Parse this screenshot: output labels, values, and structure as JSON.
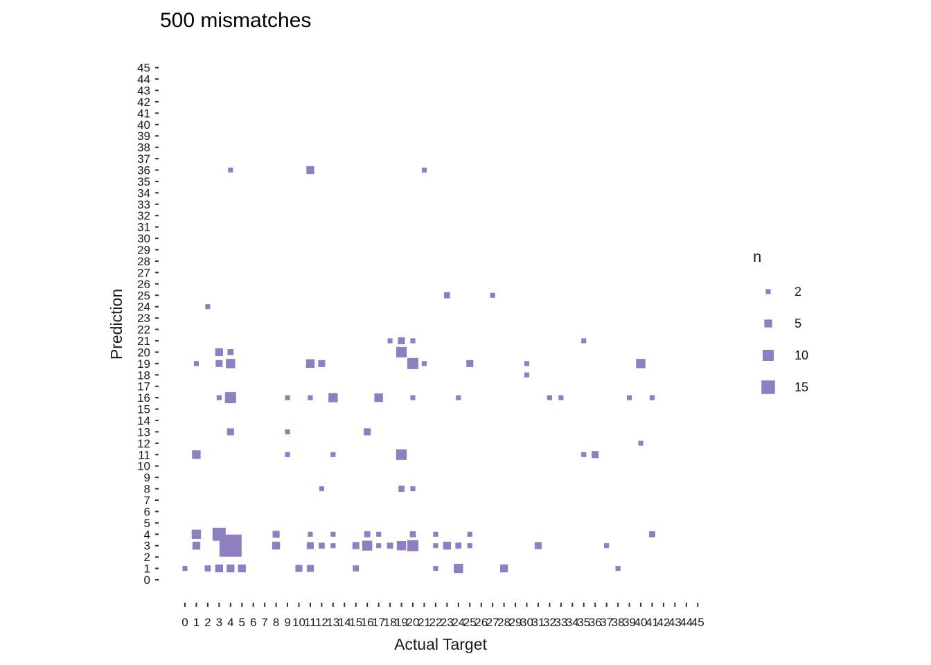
{
  "chart_data": {
    "type": "scatter",
    "title": "500 mismatches",
    "xlabel": "Actual Target",
    "ylabel": "Prediction",
    "xlim": [
      0,
      45
    ],
    "ylim": [
      0,
      45
    ],
    "grid": false,
    "legend_position": "right",
    "legend": {
      "title": "n",
      "entries": [
        {
          "label": "2",
          "value": 2
        },
        {
          "label": "5",
          "value": 5
        },
        {
          "label": "10",
          "value": 10
        },
        {
          "label": "15",
          "value": 15
        }
      ]
    },
    "point_color": "#8e7fc1",
    "points": [
      {
        "x": 0,
        "y": 1,
        "n": 2
      },
      {
        "x": 1,
        "y": 19,
        "n": 2
      },
      {
        "x": 1,
        "y": 11,
        "n": 6
      },
      {
        "x": 1,
        "y": 4,
        "n": 7
      },
      {
        "x": 1,
        "y": 3,
        "n": 5
      },
      {
        "x": 2,
        "y": 24,
        "n": 2
      },
      {
        "x": 2,
        "y": 1,
        "n": 3
      },
      {
        "x": 3,
        "y": 20,
        "n": 5
      },
      {
        "x": 3,
        "y": 19,
        "n": 4
      },
      {
        "x": 3,
        "y": 16,
        "n": 2
      },
      {
        "x": 3,
        "y": 4,
        "n": 14
      },
      {
        "x": 3,
        "y": 1,
        "n": 5
      },
      {
        "x": 4,
        "y": 36,
        "n": 2
      },
      {
        "x": 4,
        "y": 20,
        "n": 3
      },
      {
        "x": 4,
        "y": 19,
        "n": 7
      },
      {
        "x": 4,
        "y": 16,
        "n": 10
      },
      {
        "x": 4,
        "y": 13,
        "n": 4
      },
      {
        "x": 4,
        "y": 3,
        "n": 40
      },
      {
        "x": 4,
        "y": 1,
        "n": 5
      },
      {
        "x": 5,
        "y": 1,
        "n": 5
      },
      {
        "x": 8,
        "y": 4,
        "n": 4
      },
      {
        "x": 8,
        "y": 3,
        "n": 5
      },
      {
        "x": 9,
        "y": 16,
        "n": 2
      },
      {
        "x": 9,
        "y": 13,
        "n": 2
      },
      {
        "x": 9,
        "y": 11,
        "n": 2
      },
      {
        "x": 10,
        "y": 1,
        "n": 4
      },
      {
        "x": 11,
        "y": 36,
        "n": 5
      },
      {
        "x": 11,
        "y": 19,
        "n": 6
      },
      {
        "x": 11,
        "y": 16,
        "n": 2
      },
      {
        "x": 11,
        "y": 4,
        "n": 2
      },
      {
        "x": 11,
        "y": 3,
        "n": 4
      },
      {
        "x": 11,
        "y": 1,
        "n": 4
      },
      {
        "x": 12,
        "y": 19,
        "n": 4
      },
      {
        "x": 12,
        "y": 8,
        "n": 2
      },
      {
        "x": 12,
        "y": 3,
        "n": 3
      },
      {
        "x": 13,
        "y": 16,
        "n": 7
      },
      {
        "x": 13,
        "y": 11,
        "n": 2
      },
      {
        "x": 13,
        "y": 4,
        "n": 2
      },
      {
        "x": 13,
        "y": 3,
        "n": 2
      },
      {
        "x": 15,
        "y": 3,
        "n": 4
      },
      {
        "x": 15,
        "y": 1,
        "n": 3
      },
      {
        "x": 16,
        "y": 13,
        "n": 4
      },
      {
        "x": 16,
        "y": 4,
        "n": 3
      },
      {
        "x": 16,
        "y": 3,
        "n": 8
      },
      {
        "x": 17,
        "y": 16,
        "n": 6
      },
      {
        "x": 17,
        "y": 4,
        "n": 2
      },
      {
        "x": 17,
        "y": 3,
        "n": 2
      },
      {
        "x": 18,
        "y": 21,
        "n": 2
      },
      {
        "x": 18,
        "y": 3,
        "n": 3
      },
      {
        "x": 19,
        "y": 21,
        "n": 4
      },
      {
        "x": 19,
        "y": 20,
        "n": 9
      },
      {
        "x": 19,
        "y": 11,
        "n": 9
      },
      {
        "x": 19,
        "y": 8,
        "n": 3
      },
      {
        "x": 19,
        "y": 3,
        "n": 7
      },
      {
        "x": 20,
        "y": 21,
        "n": 2
      },
      {
        "x": 20,
        "y": 19,
        "n": 10
      },
      {
        "x": 20,
        "y": 16,
        "n": 2
      },
      {
        "x": 20,
        "y": 8,
        "n": 2
      },
      {
        "x": 20,
        "y": 4,
        "n": 3
      },
      {
        "x": 20,
        "y": 3,
        "n": 10
      },
      {
        "x": 21,
        "y": 36,
        "n": 2
      },
      {
        "x": 21,
        "y": 19,
        "n": 2
      },
      {
        "x": 22,
        "y": 4,
        "n": 2
      },
      {
        "x": 22,
        "y": 3,
        "n": 2
      },
      {
        "x": 22,
        "y": 1,
        "n": 2
      },
      {
        "x": 23,
        "y": 25,
        "n": 3
      },
      {
        "x": 23,
        "y": 3,
        "n": 5
      },
      {
        "x": 24,
        "y": 16,
        "n": 2
      },
      {
        "x": 24,
        "y": 3,
        "n": 3
      },
      {
        "x": 24,
        "y": 1,
        "n": 7
      },
      {
        "x": 25,
        "y": 19,
        "n": 4
      },
      {
        "x": 25,
        "y": 4,
        "n": 2
      },
      {
        "x": 25,
        "y": 3,
        "n": 2
      },
      {
        "x": 27,
        "y": 25,
        "n": 2
      },
      {
        "x": 28,
        "y": 1,
        "n": 5
      },
      {
        "x": 30,
        "y": 19,
        "n": 2
      },
      {
        "x": 30,
        "y": 18,
        "n": 2
      },
      {
        "x": 31,
        "y": 3,
        "n": 4
      },
      {
        "x": 32,
        "y": 16,
        "n": 2
      },
      {
        "x": 33,
        "y": 16,
        "n": 2
      },
      {
        "x": 35,
        "y": 21,
        "n": 2
      },
      {
        "x": 35,
        "y": 11,
        "n": 2
      },
      {
        "x": 36,
        "y": 11,
        "n": 4
      },
      {
        "x": 37,
        "y": 3,
        "n": 2
      },
      {
        "x": 38,
        "y": 1,
        "n": 2
      },
      {
        "x": 39,
        "y": 16,
        "n": 2
      },
      {
        "x": 40,
        "y": 19,
        "n": 7
      },
      {
        "x": 40,
        "y": 12,
        "n": 2
      },
      {
        "x": 41,
        "y": 16,
        "n": 2
      },
      {
        "x": 41,
        "y": 4,
        "n": 3
      }
    ]
  }
}
